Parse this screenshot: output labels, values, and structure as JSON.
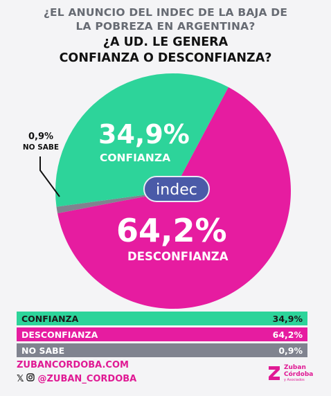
{
  "header": {
    "line1": "¿EL ANUNCIO DEL INDEC DE LA BAJA DE",
    "line2": "LA POBREZA EN ARGENTINA?",
    "line3": "¿A UD. LE GENERA",
    "line4": "CONFIANZA O DESCONFIANZA?"
  },
  "chart_data": {
    "type": "pie",
    "categories": [
      "CONFIANZA",
      "DESCONFIANZA",
      "NO SABE"
    ],
    "values": [
      34.9,
      64.2,
      0.9
    ],
    "value_labels": [
      "34,9%",
      "64,2%",
      "0,9%"
    ],
    "colors": [
      "#2dd49a",
      "#e61ca0",
      "#80838f"
    ],
    "center_logo": "indec"
  },
  "table": [
    {
      "label": "CONFIANZA",
      "value": "34,9%",
      "color": "#2dd49a"
    },
    {
      "label": "DESCONFIANZA",
      "value": "64,2%",
      "color": "#e61ca0"
    },
    {
      "label": "NO SABE",
      "value": "0,9%",
      "color": "#80838f"
    }
  ],
  "footer": {
    "website": "ZUBANCORDOBA.COM",
    "handle": "@ZUBAN_CORDOBA",
    "brand_line1": "Zuban",
    "brand_line2": "Córdoba",
    "brand_line3": "y Asociados",
    "icons": [
      "x-icon",
      "instagram-icon"
    ]
  }
}
